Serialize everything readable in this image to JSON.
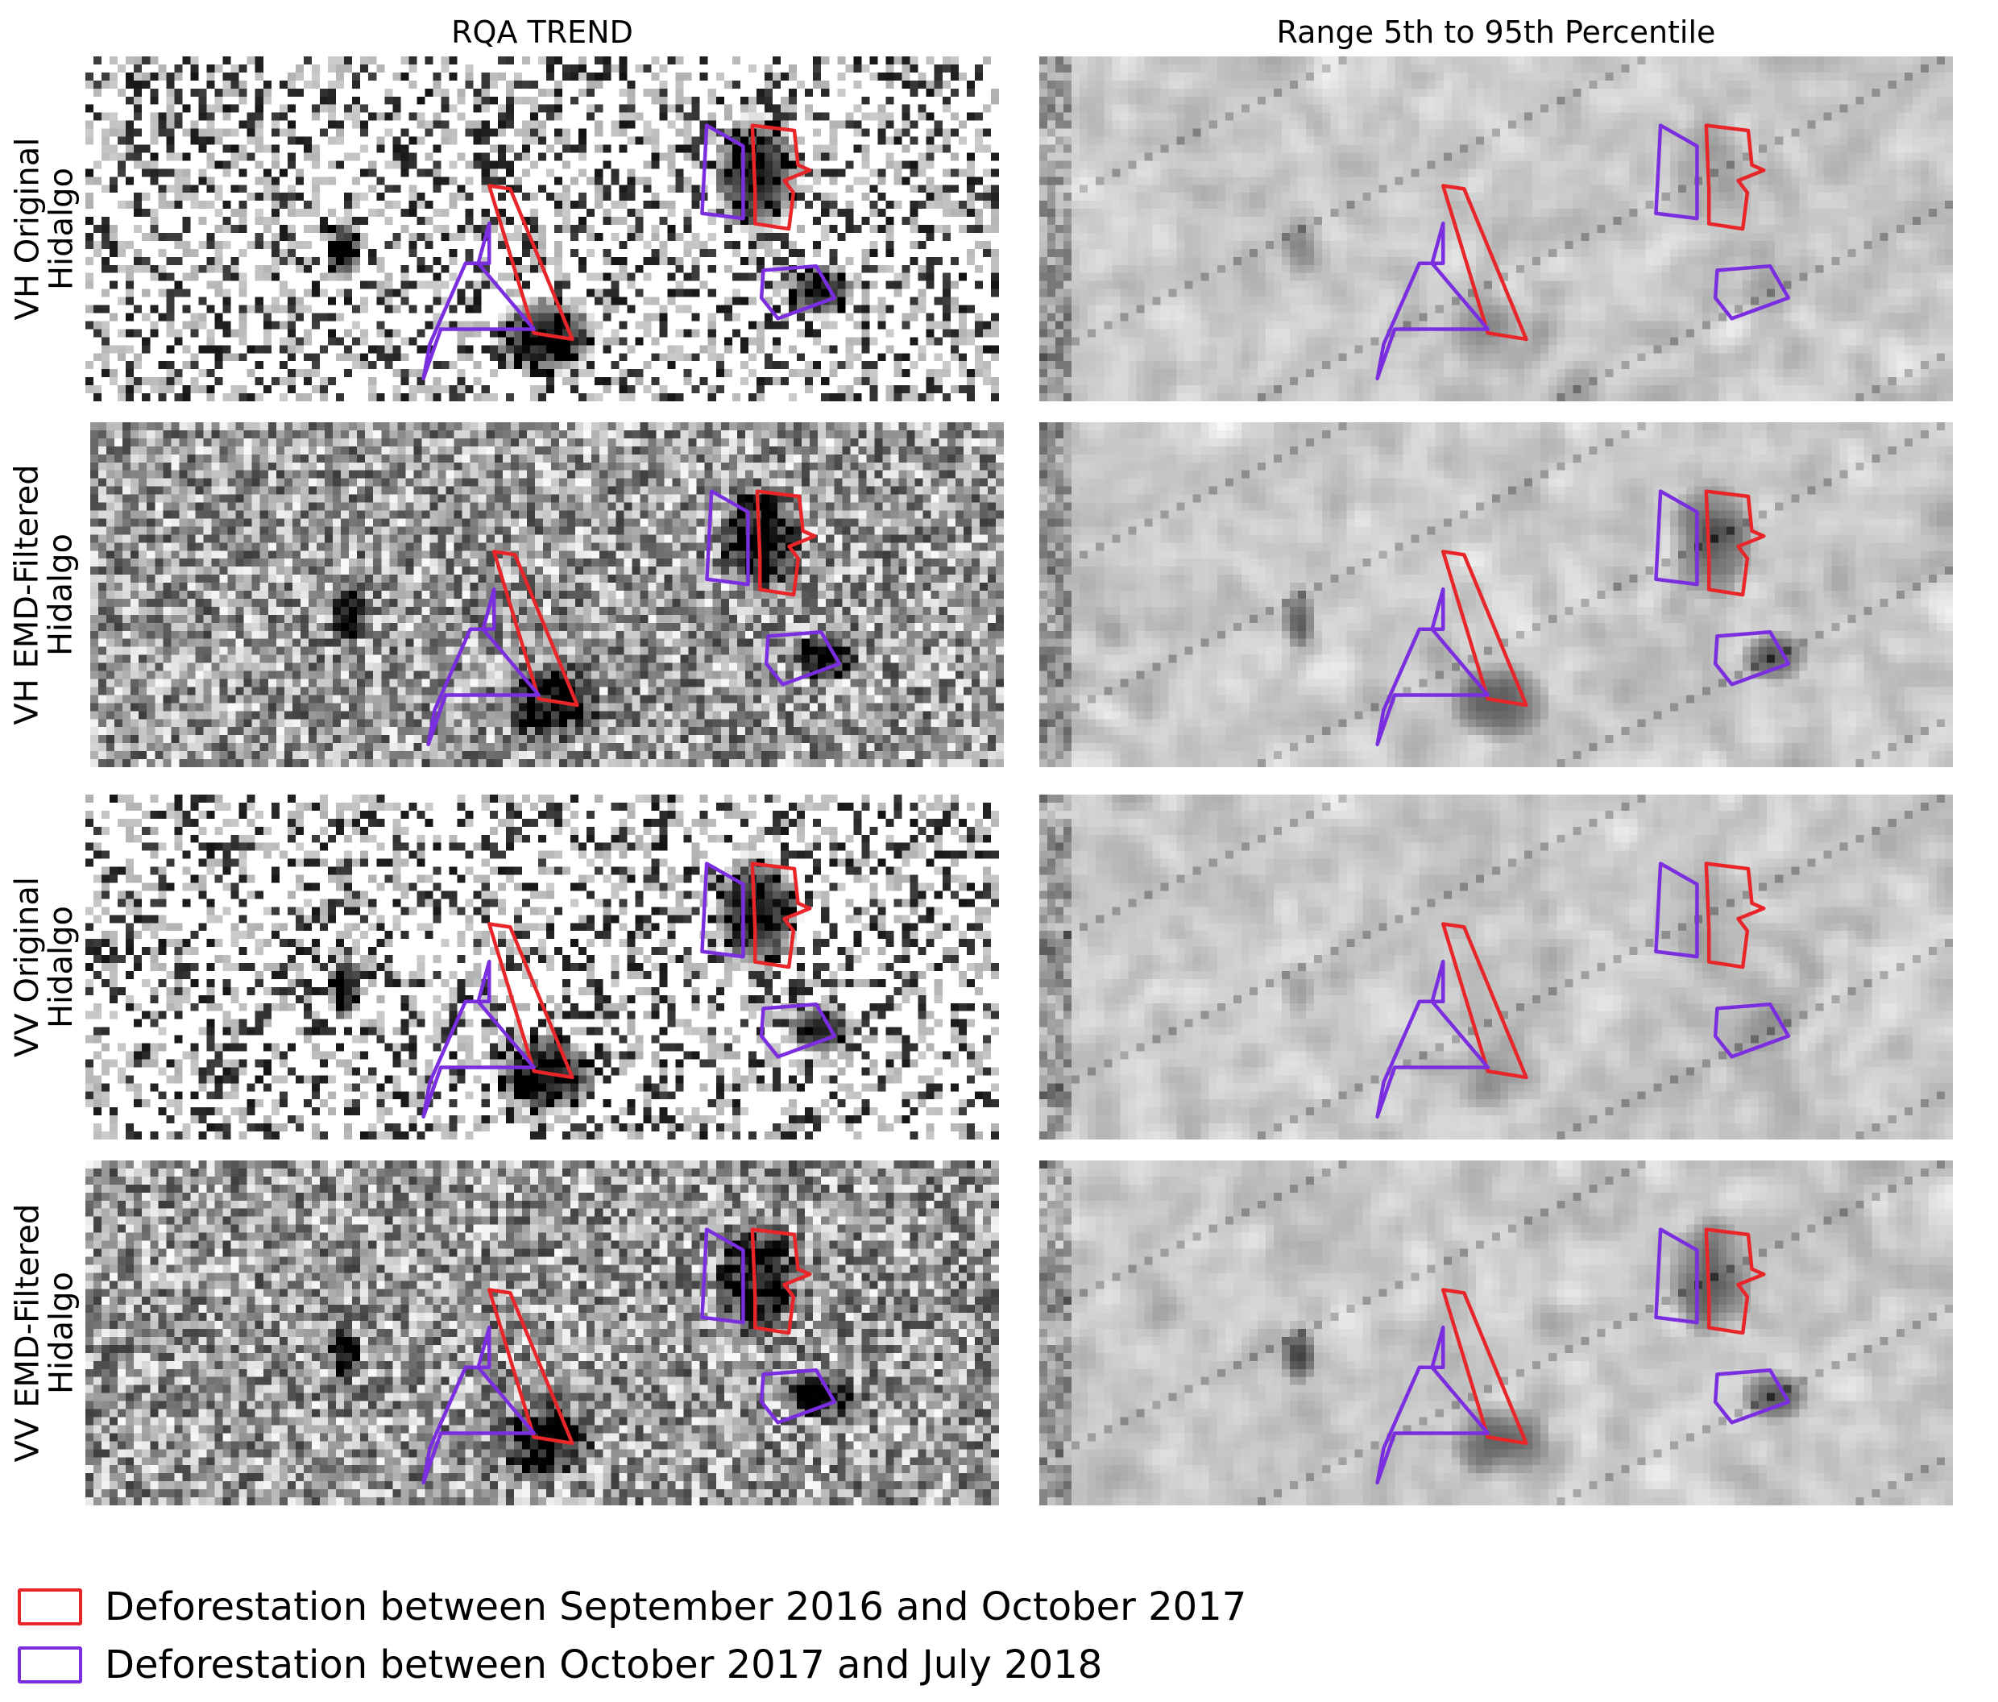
{
  "columns": [
    {
      "title": "RQA TREND",
      "texture": "rqa"
    },
    {
      "title": "Range 5th to 95th Percentile",
      "texture": "range"
    }
  ],
  "rows": [
    {
      "label_line1": "VH Original",
      "label_line2": "Hidalgo",
      "variant": "original"
    },
    {
      "label_line1": "VH EMD-Filtered",
      "label_line2": "Hidalgo",
      "variant": "filtered"
    },
    {
      "label_line1": "VV Original",
      "label_line2": "Hidalgo",
      "variant": "original"
    },
    {
      "label_line1": "VV EMD-Filtered",
      "label_line2": "Hidalgo",
      "variant": "filtered"
    }
  ],
  "legend": {
    "items": [
      {
        "label": "Deforestation between September 2016 and October 2017",
        "color": "#e8262a"
      },
      {
        "label": "Deforestation between October 2017 and July 2018",
        "color": "#7a2ee0"
      }
    ]
  },
  "colors": {
    "red_polygon": "#e8262a",
    "purple_polygon": "#7a2ee0"
  }
}
